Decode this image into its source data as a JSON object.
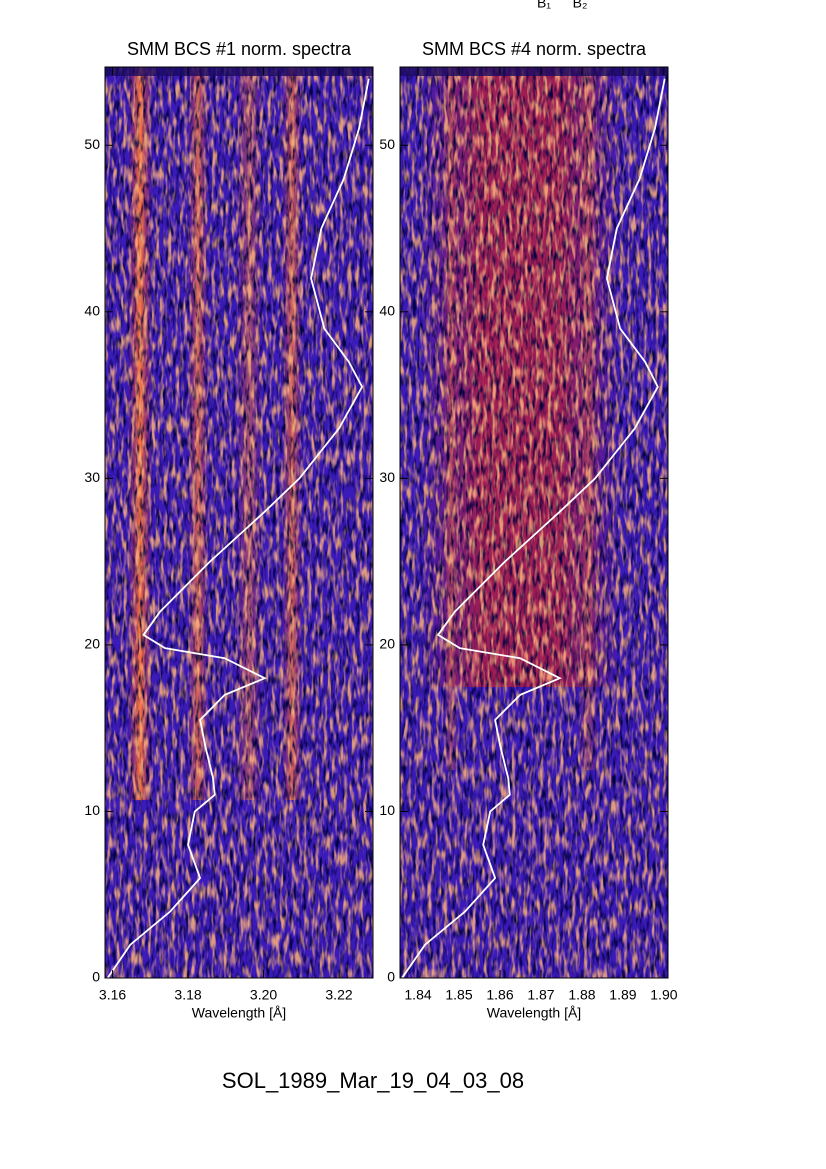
{
  "header": {
    "annotations": [
      "B₁",
      "B₂"
    ]
  },
  "footer": {
    "text": "SOL_1989_Mar_19_04_03_08"
  },
  "chart_data": [
    {
      "type": "heatmap-curve",
      "title": "SMM BCS #1 norm. spectra",
      "x_label": "Wavelength [Å]",
      "xlim": [
        3.158,
        3.229
      ],
      "xticks": [
        3.16,
        3.18,
        {
          "value": 3.2,
          "label": "3.20"
        },
        3.22
      ],
      "ylim": [
        0,
        54.7
      ],
      "yticks": [
        0,
        10,
        20,
        30,
        40,
        50
      ],
      "curve": {
        "color": "#ffffff",
        "x": [
          3.1587,
          3.1647,
          3.1753,
          3.1832,
          3.18,
          3.1818,
          3.1871,
          3.1866,
          3.1845,
          3.1832,
          3.1897,
          3.2003,
          3.1897,
          3.1739,
          3.1682,
          3.1726,
          3.1858,
          3.2003,
          3.2095,
          3.22,
          3.2261,
          3.2226,
          3.2161,
          3.2126,
          3.2153,
          3.2213,
          3.2253,
          3.2279
        ],
        "y": [
          0,
          2,
          4,
          6,
          8,
          10,
          11,
          12,
          14,
          15.5,
          17,
          18,
          19.2,
          19.8,
          20.6,
          22,
          25,
          28,
          30,
          33,
          35.5,
          37,
          39,
          42,
          45,
          48,
          51,
          54
        ]
      }
    },
    {
      "type": "heatmap-curve",
      "title": "SMM BCS #4 norm. spectra",
      "x_label": "Wavelength [Å]",
      "xlim": [
        1.8356,
        1.901
      ],
      "xticks": [
        1.84,
        1.85,
        1.86,
        1.87,
        1.88,
        1.89,
        {
          "value": 1.9,
          "label": "1.90"
        }
      ],
      "ylim": [
        0,
        54.7
      ],
      "yticks": [
        0,
        10,
        20,
        30,
        40,
        50
      ],
      "curve": {
        "color": "#ffffff",
        "x": [
          1.8361,
          1.8417,
          1.8515,
          1.8588,
          1.8559,
          1.8576,
          1.8624,
          1.862,
          1.86,
          1.8588,
          1.8649,
          1.8746,
          1.8649,
          1.8502,
          1.8449,
          1.849,
          1.8612,
          1.8746,
          1.8832,
          1.8929,
          1.8985,
          1.8954,
          1.8893,
          1.8861,
          1.8885,
          1.8941,
          1.8978,
          1.9002
        ],
        "y": [
          0,
          2,
          4,
          6,
          8,
          10,
          11,
          12,
          14,
          15.5,
          17,
          18,
          19.2,
          19.8,
          20.6,
          22,
          25,
          28,
          30,
          33,
          35.5,
          37,
          39,
          42,
          45,
          48,
          51,
          54
        ]
      }
    }
  ]
}
